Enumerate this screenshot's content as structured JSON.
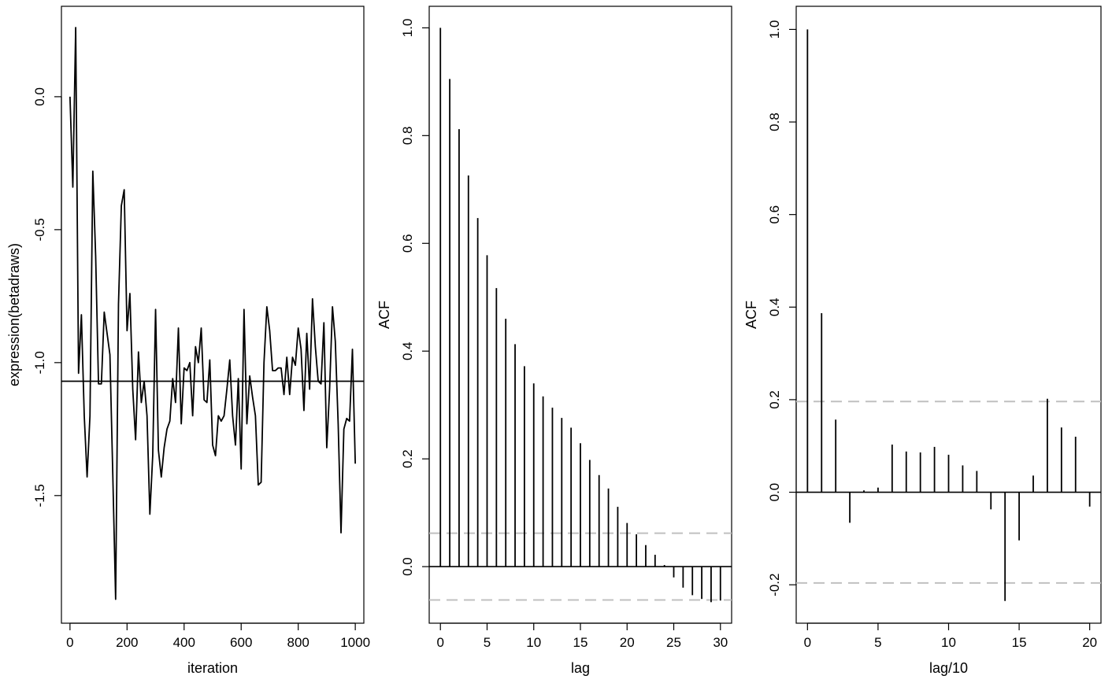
{
  "chart_data": [
    {
      "type": "line",
      "xlabel": "iteration",
      "ylabel": "expression(betadraws)",
      "xlim": [
        -30,
        1030
      ],
      "ylim": [
        -1.98,
        0.34
      ],
      "xticks": [
        0,
        200,
        400,
        600,
        800,
        1000
      ],
      "xtick_labels": [
        "0",
        "200",
        "400",
        "600",
        "800",
        "1000"
      ],
      "yticks": [
        0.0,
        -0.5,
        -1.0,
        -1.5
      ],
      "ytick_labels": [
        "0.0",
        "-0.5",
        "-1.0",
        "-1.5"
      ],
      "hline": -1.07,
      "hline_color": "#000000",
      "line_color": "#000000",
      "grid": false,
      "x": [
        0,
        10,
        20,
        30,
        40,
        50,
        60,
        70,
        80,
        90,
        100,
        110,
        120,
        130,
        140,
        150,
        160,
        170,
        180,
        190,
        200,
        210,
        220,
        230,
        240,
        250,
        260,
        270,
        280,
        290,
        300,
        310,
        320,
        330,
        340,
        350,
        360,
        370,
        380,
        390,
        400,
        410,
        420,
        430,
        440,
        450,
        460,
        470,
        480,
        490,
        500,
        510,
        520,
        530,
        540,
        550,
        560,
        570,
        580,
        590,
        600,
        610,
        620,
        630,
        640,
        650,
        660,
        670,
        680,
        690,
        700,
        710,
        720,
        730,
        740,
        750,
        760,
        770,
        780,
        790,
        800,
        810,
        820,
        830,
        840,
        850,
        860,
        870,
        880,
        890,
        900,
        910,
        920,
        930,
        940,
        950,
        960,
        970,
        980,
        990,
        1000
      ],
      "y": [
        0.0,
        -0.34,
        0.26,
        -1.04,
        -0.82,
        -1.2,
        -1.43,
        -1.2,
        -0.28,
        -0.6,
        -1.08,
        -1.08,
        -0.81,
        -0.89,
        -0.97,
        -1.42,
        -1.89,
        -0.78,
        -0.41,
        -0.35,
        -0.88,
        -0.74,
        -1.1,
        -1.29,
        -0.96,
        -1.15,
        -1.07,
        -1.2,
        -1.57,
        -1.35,
        -0.8,
        -1.33,
        -1.43,
        -1.32,
        -1.25,
        -1.22,
        -1.06,
        -1.15,
        -0.87,
        -1.23,
        -1.02,
        -1.03,
        -1.0,
        -1.2,
        -0.94,
        -1.0,
        -0.87,
        -1.14,
        -1.15,
        -0.99,
        -1.31,
        -1.35,
        -1.2,
        -1.22,
        -1.2,
        -1.1,
        -0.99,
        -1.2,
        -1.31,
        -1.06,
        -1.4,
        -0.8,
        -1.23,
        -1.05,
        -1.13,
        -1.2,
        -1.46,
        -1.45,
        -1.0,
        -0.79,
        -0.88,
        -1.03,
        -1.03,
        -1.02,
        -1.02,
        -1.12,
        -0.98,
        -1.12,
        -0.98,
        -1.01,
        -0.87,
        -0.95,
        -1.18,
        -0.89,
        -1.1,
        -0.76,
        -0.94,
        -1.07,
        -1.08,
        -0.85,
        -1.32,
        -1.1,
        -0.79,
        -0.92,
        -1.23,
        -1.64,
        -1.25,
        -1.21,
        -1.22,
        -0.95,
        -1.38
      ]
    },
    {
      "type": "bar",
      "xlabel": "lag",
      "ylabel": "ACF",
      "xlim": [
        -1.2,
        31.2
      ],
      "ylim": [
        -0.105,
        1.04
      ],
      "xticks": [
        0,
        5,
        10,
        15,
        20,
        25,
        30
      ],
      "xtick_labels": [
        "0",
        "5",
        "10",
        "15",
        "20",
        "25",
        "30"
      ],
      "yticks": [
        0.0,
        0.2,
        0.4,
        0.6,
        0.8,
        1.0
      ],
      "ytick_labels": [
        "0.0",
        "0.2",
        "0.4",
        "0.6",
        "0.8",
        "1.0"
      ],
      "confidence_bound": 0.062,
      "confidence_color": "#c0c0c0",
      "zero_line": true,
      "grid": false,
      "x": [
        0,
        1,
        2,
        3,
        4,
        5,
        6,
        7,
        8,
        9,
        10,
        11,
        12,
        13,
        14,
        15,
        16,
        17,
        18,
        19,
        20,
        21,
        22,
        23,
        24,
        25,
        26,
        27,
        28,
        29,
        30
      ],
      "values": [
        1.0,
        0.905,
        0.812,
        0.726,
        0.647,
        0.578,
        0.517,
        0.46,
        0.413,
        0.372,
        0.34,
        0.316,
        0.295,
        0.276,
        0.258,
        0.229,
        0.198,
        0.17,
        0.145,
        0.111,
        0.081,
        0.06,
        0.04,
        0.022,
        0.003,
        -0.02,
        -0.039,
        -0.053,
        -0.06,
        -0.066,
        -0.063
      ]
    },
    {
      "type": "bar",
      "xlabel": "lag/10",
      "ylabel": "ACF",
      "xlim": [
        -0.8,
        20.8
      ],
      "ylim": [
        -0.283,
        1.05
      ],
      "xticks": [
        0,
        5,
        10,
        15,
        20
      ],
      "xtick_labels": [
        "0",
        "5",
        "10",
        "15",
        "20"
      ],
      "yticks": [
        -0.2,
        0.0,
        0.2,
        0.4,
        0.6,
        0.8,
        1.0
      ],
      "ytick_labels": [
        "-0.2",
        "0.0",
        "0.2",
        "0.4",
        "0.6",
        "0.8",
        "1.0"
      ],
      "confidence_bound": 0.196,
      "confidence_color": "#c0c0c0",
      "zero_line": true,
      "grid": false,
      "x": [
        0,
        1,
        2,
        3,
        4,
        5,
        6,
        7,
        8,
        9,
        10,
        11,
        12,
        13,
        14,
        15,
        16,
        17,
        18,
        19,
        20
      ],
      "values": [
        1.0,
        0.387,
        0.157,
        -0.066,
        0.004,
        0.01,
        0.103,
        0.088,
        0.086,
        0.098,
        0.081,
        0.058,
        0.046,
        -0.037,
        -0.235,
        -0.104,
        0.036,
        0.202,
        0.14,
        0.12,
        -0.031
      ]
    }
  ]
}
